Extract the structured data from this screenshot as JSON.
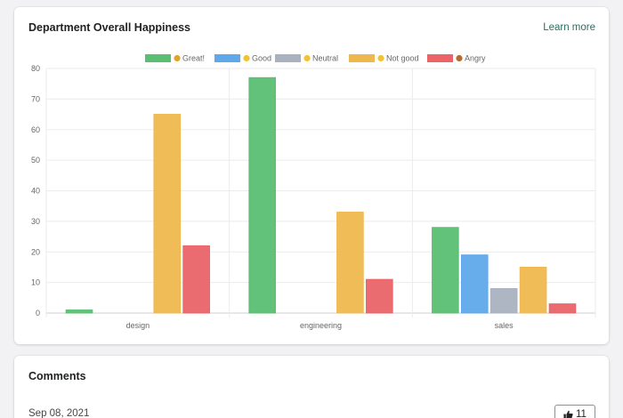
{
  "chart_card": {
    "title": "Department Overall Happiness",
    "learn_more": "Learn more"
  },
  "comments_card": {
    "title": "Comments",
    "comment_date": "Sep 08, 2021",
    "like_count": "11",
    "like_icon": "thumbs-up-icon"
  },
  "chart_data": {
    "type": "bar",
    "title": "",
    "xlabel": "",
    "ylabel": "",
    "categories": [
      "design",
      "engineering",
      "sales"
    ],
    "ylim": [
      0,
      80
    ],
    "yticks": [
      0,
      10,
      20,
      30,
      40,
      50,
      60,
      70,
      80
    ],
    "grid": true,
    "legend_position": "top",
    "series": [
      {
        "name": "Great!",
        "emoji": "great-face-icon",
        "color": "#5bbf73",
        "values": [
          1,
          77,
          28
        ]
      },
      {
        "name": "Good",
        "emoji": "good-face-icon",
        "color": "#5fa8ea",
        "values": [
          0,
          0,
          19
        ]
      },
      {
        "name": "Neutral",
        "emoji": "neutral-face-icon",
        "color": "#a9b2bf",
        "values": [
          0,
          0,
          8
        ]
      },
      {
        "name": "Not good",
        "emoji": "not-good-face-icon",
        "color": "#efb84f",
        "values": [
          65,
          33,
          15
        ]
      },
      {
        "name": "Angry",
        "emoji": "angry-face-icon",
        "color": "#ea6468",
        "values": [
          22,
          11,
          3
        ]
      }
    ]
  }
}
